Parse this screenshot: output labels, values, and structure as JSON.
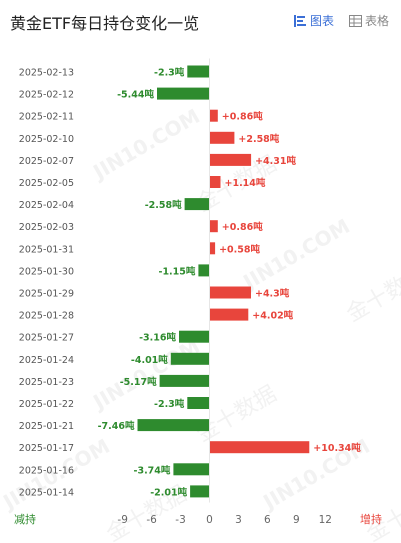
{
  "header": {
    "title": "黄金ETF每日持仓变化一览",
    "tabs": [
      {
        "label": "图表",
        "icon": "bar-chart-icon",
        "active": true
      },
      {
        "label": "表格",
        "icon": "table-icon",
        "active": false
      }
    ]
  },
  "watermark": {
    "text_latin": "JIN10.COM",
    "text_cn": "金十数据"
  },
  "footer": {
    "left_label": "减持",
    "right_label": "增持"
  },
  "colors": {
    "positive": "#e8453c",
    "negative": "#2e8b2e",
    "active_tab": "#3b6fd6",
    "inactive_tab": "#888888",
    "axis_text": "#666666",
    "date_text": "#555555"
  },
  "chart_data": {
    "type": "bar",
    "orientation": "horizontal",
    "unit": "吨",
    "categories": [
      "2025-02-13",
      "2025-02-12",
      "2025-02-11",
      "2025-02-10",
      "2025-02-07",
      "2025-02-05",
      "2025-02-04",
      "2025-02-03",
      "2025-01-31",
      "2025-01-30",
      "2025-01-29",
      "2025-01-28",
      "2025-01-27",
      "2025-01-24",
      "2025-01-23",
      "2025-01-22",
      "2025-01-21",
      "2025-01-17",
      "2025-01-16",
      "2025-01-14"
    ],
    "values": [
      -2.3,
      -5.44,
      0.86,
      2.58,
      4.31,
      1.14,
      -2.58,
      0.86,
      0.58,
      -1.15,
      4.3,
      4.02,
      -3.16,
      -4.01,
      -5.17,
      -2.3,
      -7.46,
      10.34,
      -3.74,
      -2.01
    ],
    "labels": [
      "-2.3吨",
      "-5.44吨",
      "+0.86吨",
      "+2.58吨",
      "+4.31吨",
      "+1.14吨",
      "-2.58吨",
      "+0.86吨",
      "+0.58吨",
      "-1.15吨",
      "+4.3吨",
      "+4.02吨",
      "-3.16吨",
      "-4.01吨",
      "-5.17吨",
      "-2.3吨",
      "-7.46吨",
      "+10.34吨",
      "-3.74吨",
      "-2.01吨"
    ],
    "xticks": [
      -9,
      -6,
      -3,
      0,
      3,
      6,
      9,
      12
    ],
    "xlim": [
      -9,
      12
    ],
    "grid": false
  }
}
